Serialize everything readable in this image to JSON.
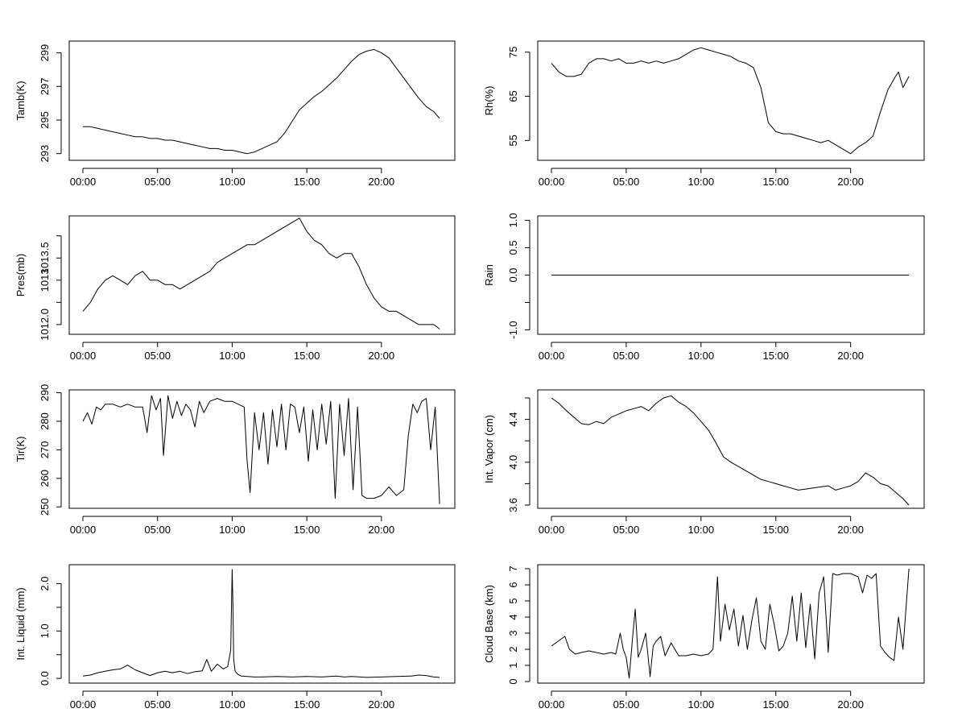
{
  "chart_data": [
    {
      "type": "line",
      "ylabel": "Tamb(K)",
      "xlabel": "",
      "x_ticks": [
        "00:00",
        "05:00",
        "10:00",
        "15:00",
        "20:00"
      ],
      "xlim": [
        0,
        24
      ],
      "ylim": [
        292.6,
        299.7
      ],
      "y_ticks": [
        293,
        295,
        297,
        299
      ],
      "y_tick_labels": [
        "293",
        "295",
        "297",
        "299"
      ],
      "series": [
        {
          "name": "Tamb",
          "x": [
            0.0,
            0.5,
            1.0,
            1.5,
            2.0,
            2.5,
            3.0,
            3.5,
            4.0,
            4.5,
            5.0,
            5.5,
            6.0,
            6.5,
            7.0,
            7.5,
            8.0,
            8.5,
            9.0,
            9.5,
            10.0,
            10.5,
            11.0,
            11.5,
            12.0,
            12.5,
            13.0,
            13.5,
            14.0,
            14.5,
            15.0,
            15.5,
            16.0,
            16.5,
            17.0,
            17.5,
            18.0,
            18.5,
            19.0,
            19.5,
            20.0,
            20.5,
            21.0,
            21.5,
            22.0,
            22.5,
            23.0,
            23.5,
            23.9
          ],
          "y": [
            294.6,
            294.6,
            294.5,
            294.4,
            294.3,
            294.2,
            294.1,
            294.0,
            294.0,
            293.9,
            293.9,
            293.8,
            293.8,
            293.7,
            293.6,
            293.5,
            293.4,
            293.3,
            293.3,
            293.2,
            293.2,
            293.1,
            293.0,
            293.1,
            293.3,
            293.5,
            293.7,
            294.2,
            294.9,
            295.6,
            296.0,
            296.4,
            296.7,
            297.1,
            297.5,
            298.0,
            298.5,
            298.9,
            299.1,
            299.2,
            299.0,
            298.7,
            298.1,
            297.5,
            296.9,
            296.3,
            295.8,
            295.5,
            295.1
          ]
        }
      ]
    },
    {
      "type": "line",
      "ylabel": "Rh(%)",
      "xlabel": "",
      "x_ticks": [
        "00:00",
        "05:00",
        "10:00",
        "15:00",
        "20:00"
      ],
      "xlim": [
        0,
        24
      ],
      "ylim": [
        50.5,
        77.5
      ],
      "y_ticks": [
        55,
        65,
        75
      ],
      "y_tick_labels": [
        "55",
        "65",
        "75"
      ],
      "series": [
        {
          "name": "Rh",
          "x": [
            0.0,
            0.5,
            1.0,
            1.5,
            2.0,
            2.5,
            3.0,
            3.5,
            4.0,
            4.5,
            5.0,
            5.5,
            6.0,
            6.5,
            7.0,
            7.5,
            8.0,
            8.5,
            9.0,
            9.5,
            10.0,
            10.5,
            11.0,
            11.5,
            12.0,
            12.5,
            13.0,
            13.5,
            14.0,
            14.5,
            15.0,
            15.5,
            16.0,
            16.5,
            17.0,
            17.5,
            18.0,
            18.5,
            19.0,
            19.5,
            20.0,
            20.5,
            21.0,
            21.5,
            22.0,
            22.5,
            23.0,
            23.2,
            23.5,
            23.9
          ],
          "y": [
            72.5,
            70.5,
            69.5,
            69.5,
            70.0,
            72.5,
            73.5,
            73.5,
            73.0,
            73.5,
            72.5,
            72.5,
            73.0,
            72.5,
            73.0,
            72.5,
            73.0,
            73.5,
            74.5,
            75.5,
            76.0,
            75.5,
            75.0,
            74.5,
            74.0,
            73.0,
            72.5,
            71.5,
            67.0,
            59.0,
            57.0,
            56.5,
            56.5,
            56.0,
            55.5,
            55.0,
            54.5,
            55.0,
            54.0,
            53.0,
            52.0,
            53.5,
            54.5,
            56.0,
            61.5,
            66.5,
            69.5,
            70.5,
            67.0,
            69.5
          ]
        }
      ]
    },
    {
      "type": "line",
      "ylabel": "Pres(mb)",
      "xlabel": "",
      "x_ticks": [
        "00:00",
        "05:00",
        "10:00",
        "15:00",
        "20:00"
      ],
      "xlim": [
        0,
        24
      ],
      "ylim": [
        1011.78,
        1014.45
      ],
      "y_ticks": [
        1012.0,
        1012.5,
        1013.0,
        1013.5,
        1014.0
      ],
      "y_tick_labels": [
        "1012.0",
        "",
        "1013",
        "1013.5",
        ""
      ],
      "series": [
        {
          "name": "Pres",
          "x": [
            0.0,
            0.5,
            1.0,
            1.5,
            2.0,
            2.5,
            3.0,
            3.5,
            4.0,
            4.5,
            5.0,
            5.5,
            6.0,
            6.5,
            7.0,
            7.5,
            8.0,
            8.5,
            9.0,
            9.5,
            10.0,
            10.5,
            11.0,
            11.5,
            12.0,
            12.5,
            13.0,
            13.5,
            14.0,
            14.5,
            15.0,
            15.5,
            16.0,
            16.5,
            17.0,
            17.5,
            18.0,
            18.5,
            19.0,
            19.5,
            20.0,
            20.5,
            21.0,
            21.5,
            22.0,
            22.5,
            23.0,
            23.5,
            23.9
          ],
          "y": [
            1012.3,
            1012.5,
            1012.8,
            1013.0,
            1013.1,
            1013.0,
            1012.9,
            1013.1,
            1013.2,
            1013.0,
            1013.0,
            1012.9,
            1012.9,
            1012.8,
            1012.9,
            1013.0,
            1013.1,
            1013.2,
            1013.4,
            1013.5,
            1013.6,
            1013.7,
            1013.8,
            1013.8,
            1013.9,
            1014.0,
            1014.1,
            1014.2,
            1014.3,
            1014.4,
            1014.1,
            1013.9,
            1013.8,
            1013.6,
            1013.5,
            1013.6,
            1013.6,
            1013.3,
            1012.9,
            1012.6,
            1012.4,
            1012.3,
            1012.3,
            1012.2,
            1012.1,
            1012.0,
            1012.0,
            1012.0,
            1011.9
          ]
        }
      ]
    },
    {
      "type": "line",
      "ylabel": "Rain",
      "xlabel": "",
      "x_ticks": [
        "00:00",
        "05:00",
        "10:00",
        "15:00",
        "20:00"
      ],
      "xlim": [
        0,
        24
      ],
      "ylim": [
        -1.08,
        1.08
      ],
      "y_ticks": [
        -1.0,
        -0.5,
        0.0,
        0.5,
        1.0
      ],
      "y_tick_labels": [
        "-1.0",
        "",
        "0.0",
        "0.5",
        "1.0"
      ],
      "series": [
        {
          "name": "Rain",
          "x": [
            0.0,
            23.9
          ],
          "y": [
            0.0,
            0.0
          ]
        }
      ]
    },
    {
      "type": "line",
      "ylabel": "Tir(K)",
      "xlabel": "",
      "x_ticks": [
        "00:00",
        "05:00",
        "10:00",
        "15:00",
        "20:00"
      ],
      "xlim": [
        0,
        24
      ],
      "ylim": [
        249.5,
        291.0
      ],
      "y_ticks": [
        250,
        260,
        270,
        280,
        290
      ],
      "y_tick_labels": [
        "250",
        "260",
        "270",
        "280",
        "290"
      ],
      "series": [
        {
          "name": "Tir",
          "x": [
            0.0,
            0.3,
            0.6,
            0.9,
            1.2,
            1.5,
            2.0,
            2.5,
            3.0,
            3.5,
            4.0,
            4.3,
            4.6,
            4.9,
            5.2,
            5.4,
            5.7,
            6.0,
            6.3,
            6.6,
            6.9,
            7.2,
            7.5,
            7.8,
            8.1,
            8.5,
            9.0,
            9.5,
            10.0,
            10.4,
            10.8,
            11.0,
            11.2,
            11.5,
            11.8,
            12.1,
            12.4,
            12.7,
            13.0,
            13.3,
            13.6,
            13.9,
            14.2,
            14.5,
            14.8,
            15.1,
            15.4,
            15.7,
            16.0,
            16.3,
            16.6,
            16.9,
            17.2,
            17.5,
            17.8,
            18.1,
            18.4,
            18.7,
            19.0,
            19.5,
            20.0,
            20.5,
            21.0,
            21.5,
            21.8,
            22.1,
            22.4,
            22.7,
            23.0,
            23.3,
            23.6,
            23.9
          ],
          "y": [
            280,
            283,
            279,
            285,
            284,
            286,
            286,
            285,
            286,
            285,
            285,
            276,
            289,
            284,
            288,
            268,
            289,
            281,
            287,
            282,
            286,
            284,
            278,
            287,
            283,
            287,
            288,
            287,
            287,
            286,
            285,
            266,
            255,
            283,
            270,
            283,
            265,
            284,
            271,
            286,
            270,
            286,
            285,
            276,
            285,
            266,
            284,
            270,
            286,
            272,
            287,
            253,
            286,
            268,
            288,
            256,
            285,
            254,
            253,
            253,
            254,
            257,
            254,
            256,
            275,
            286,
            283,
            287,
            288,
            270,
            285,
            251
          ]
        }
      ]
    },
    {
      "type": "line",
      "ylabel": "Int. Vapor (cm)",
      "xlabel": "",
      "x_ticks": [
        "00:00",
        "05:00",
        "10:00",
        "15:00",
        "20:00"
      ],
      "xlim": [
        0,
        24
      ],
      "ylim": [
        3.57,
        4.675
      ],
      "y_ticks": [
        3.6,
        3.8,
        4.0,
        4.2,
        4.4,
        4.6
      ],
      "y_tick_labels": [
        "3.6",
        "",
        "4.0",
        "",
        "4.4",
        ""
      ],
      "series": [
        {
          "name": "IntVapor",
          "x": [
            0.0,
            0.5,
            1.0,
            1.5,
            2.0,
            2.5,
            3.0,
            3.5,
            4.0,
            4.5,
            5.0,
            5.5,
            6.0,
            6.5,
            7.0,
            7.5,
            8.0,
            8.5,
            9.0,
            9.5,
            10.0,
            10.5,
            11.0,
            11.5,
            12.0,
            12.5,
            13.0,
            13.5,
            14.0,
            14.5,
            15.0,
            15.5,
            16.0,
            16.5,
            17.0,
            17.5,
            18.0,
            18.5,
            19.0,
            19.5,
            20.0,
            20.5,
            21.0,
            21.5,
            22.0,
            22.5,
            23.0,
            23.5,
            23.9
          ],
          "y": [
            4.6,
            4.55,
            4.48,
            4.42,
            4.36,
            4.35,
            4.38,
            4.36,
            4.42,
            4.45,
            4.48,
            4.5,
            4.52,
            4.48,
            4.55,
            4.6,
            4.62,
            4.56,
            4.52,
            4.46,
            4.38,
            4.3,
            4.18,
            4.05,
            4.0,
            3.96,
            3.92,
            3.88,
            3.84,
            3.82,
            3.8,
            3.78,
            3.76,
            3.74,
            3.75,
            3.76,
            3.77,
            3.78,
            3.74,
            3.76,
            3.78,
            3.82,
            3.9,
            3.86,
            3.8,
            3.78,
            3.72,
            3.66,
            3.6
          ]
        }
      ]
    },
    {
      "type": "line",
      "ylabel": "Int. Liquid (mm)",
      "xlabel": "",
      "x_ticks": [
        "00:00",
        "05:00",
        "10:00",
        "15:00",
        "20:00"
      ],
      "xlim": [
        0,
        24
      ],
      "ylim": [
        -0.1,
        2.4
      ],
      "y_ticks": [
        0.0,
        0.5,
        1.0,
        1.5,
        2.0
      ],
      "y_tick_labels": [
        "0.0",
        "",
        "1.0",
        "",
        "2.0"
      ],
      "series": [
        {
          "name": "IntLiquid",
          "x": [
            0.0,
            0.5,
            1.0,
            1.5,
            2.0,
            2.5,
            3.0,
            3.5,
            4.0,
            4.5,
            5.0,
            5.5,
            6.0,
            6.5,
            7.0,
            7.5,
            8.0,
            8.3,
            8.6,
            9.0,
            9.4,
            9.7,
            9.9,
            10.0,
            10.05,
            10.1,
            10.2,
            10.4,
            10.6,
            11.0,
            11.5,
            12.0,
            13.0,
            14.0,
            15.0,
            16.0,
            17.0,
            17.5,
            18.0,
            19.0,
            20.0,
            21.0,
            22.0,
            22.5,
            23.0,
            23.5,
            23.9
          ],
          "y": [
            0.05,
            0.07,
            0.12,
            0.15,
            0.18,
            0.2,
            0.28,
            0.18,
            0.12,
            0.06,
            0.12,
            0.15,
            0.12,
            0.15,
            0.1,
            0.14,
            0.16,
            0.4,
            0.15,
            0.3,
            0.2,
            0.25,
            0.6,
            2.3,
            1.6,
            0.4,
            0.15,
            0.08,
            0.05,
            0.04,
            0.03,
            0.03,
            0.04,
            0.03,
            0.04,
            0.03,
            0.05,
            0.03,
            0.04,
            0.02,
            0.03,
            0.04,
            0.05,
            0.07,
            0.06,
            0.03,
            0.02
          ]
        }
      ]
    },
    {
      "type": "line",
      "ylabel": "Cloud Base (km)",
      "xlabel": "",
      "x_ticks": [
        "00:00",
        "05:00",
        "10:00",
        "15:00",
        "20:00"
      ],
      "xlim": [
        0,
        24
      ],
      "ylim": [
        -0.1,
        7.25
      ],
      "y_ticks": [
        0,
        1,
        2,
        3,
        4,
        5,
        6,
        7
      ],
      "y_tick_labels": [
        "0",
        "1",
        "2",
        "3",
        "4",
        "5",
        "6",
        "7"
      ],
      "series": [
        {
          "name": "CloudBase",
          "x": [
            0.0,
            0.3,
            0.6,
            0.9,
            1.2,
            1.6,
            2.0,
            2.5,
            3.0,
            3.5,
            4.0,
            4.3,
            4.6,
            4.8,
            5.0,
            5.2,
            5.4,
            5.6,
            5.8,
            6.0,
            6.3,
            6.6,
            6.8,
            7.0,
            7.3,
            7.6,
            8.0,
            8.5,
            9.0,
            9.5,
            10.0,
            10.5,
            10.8,
            11.1,
            11.3,
            11.6,
            11.9,
            12.2,
            12.5,
            12.8,
            13.1,
            13.4,
            13.7,
            14.0,
            14.3,
            14.6,
            14.9,
            15.2,
            15.5,
            15.8,
            16.1,
            16.4,
            16.7,
            17.0,
            17.3,
            17.6,
            17.9,
            18.2,
            18.5,
            18.8,
            19.1,
            19.5,
            20.0,
            20.5,
            20.8,
            21.1,
            21.4,
            21.7,
            22.0,
            22.3,
            22.6,
            22.9,
            23.2,
            23.5,
            23.9
          ],
          "y": [
            2.2,
            2.4,
            2.6,
            2.8,
            2.0,
            1.7,
            1.8,
            1.9,
            1.8,
            1.7,
            1.8,
            1.7,
            3.0,
            2.0,
            1.5,
            0.2,
            2.5,
            4.5,
            1.5,
            2.0,
            3.0,
            0.3,
            2.2,
            2.5,
            2.8,
            1.6,
            2.4,
            1.6,
            1.6,
            1.7,
            1.6,
            1.7,
            2.0,
            6.5,
            2.5,
            4.8,
            3.2,
            4.5,
            2.2,
            4.1,
            2.0,
            3.8,
            5.2,
            2.5,
            2.0,
            4.8,
            3.5,
            1.9,
            2.2,
            3.0,
            5.3,
            2.5,
            5.5,
            2.1,
            4.8,
            1.4,
            5.5,
            6.5,
            1.8,
            6.7,
            6.6,
            6.7,
            6.7,
            6.5,
            5.5,
            6.6,
            6.4,
            6.7,
            2.2,
            1.8,
            1.5,
            1.3,
            4.0,
            2.0,
            7.0
          ]
        }
      ]
    }
  ]
}
